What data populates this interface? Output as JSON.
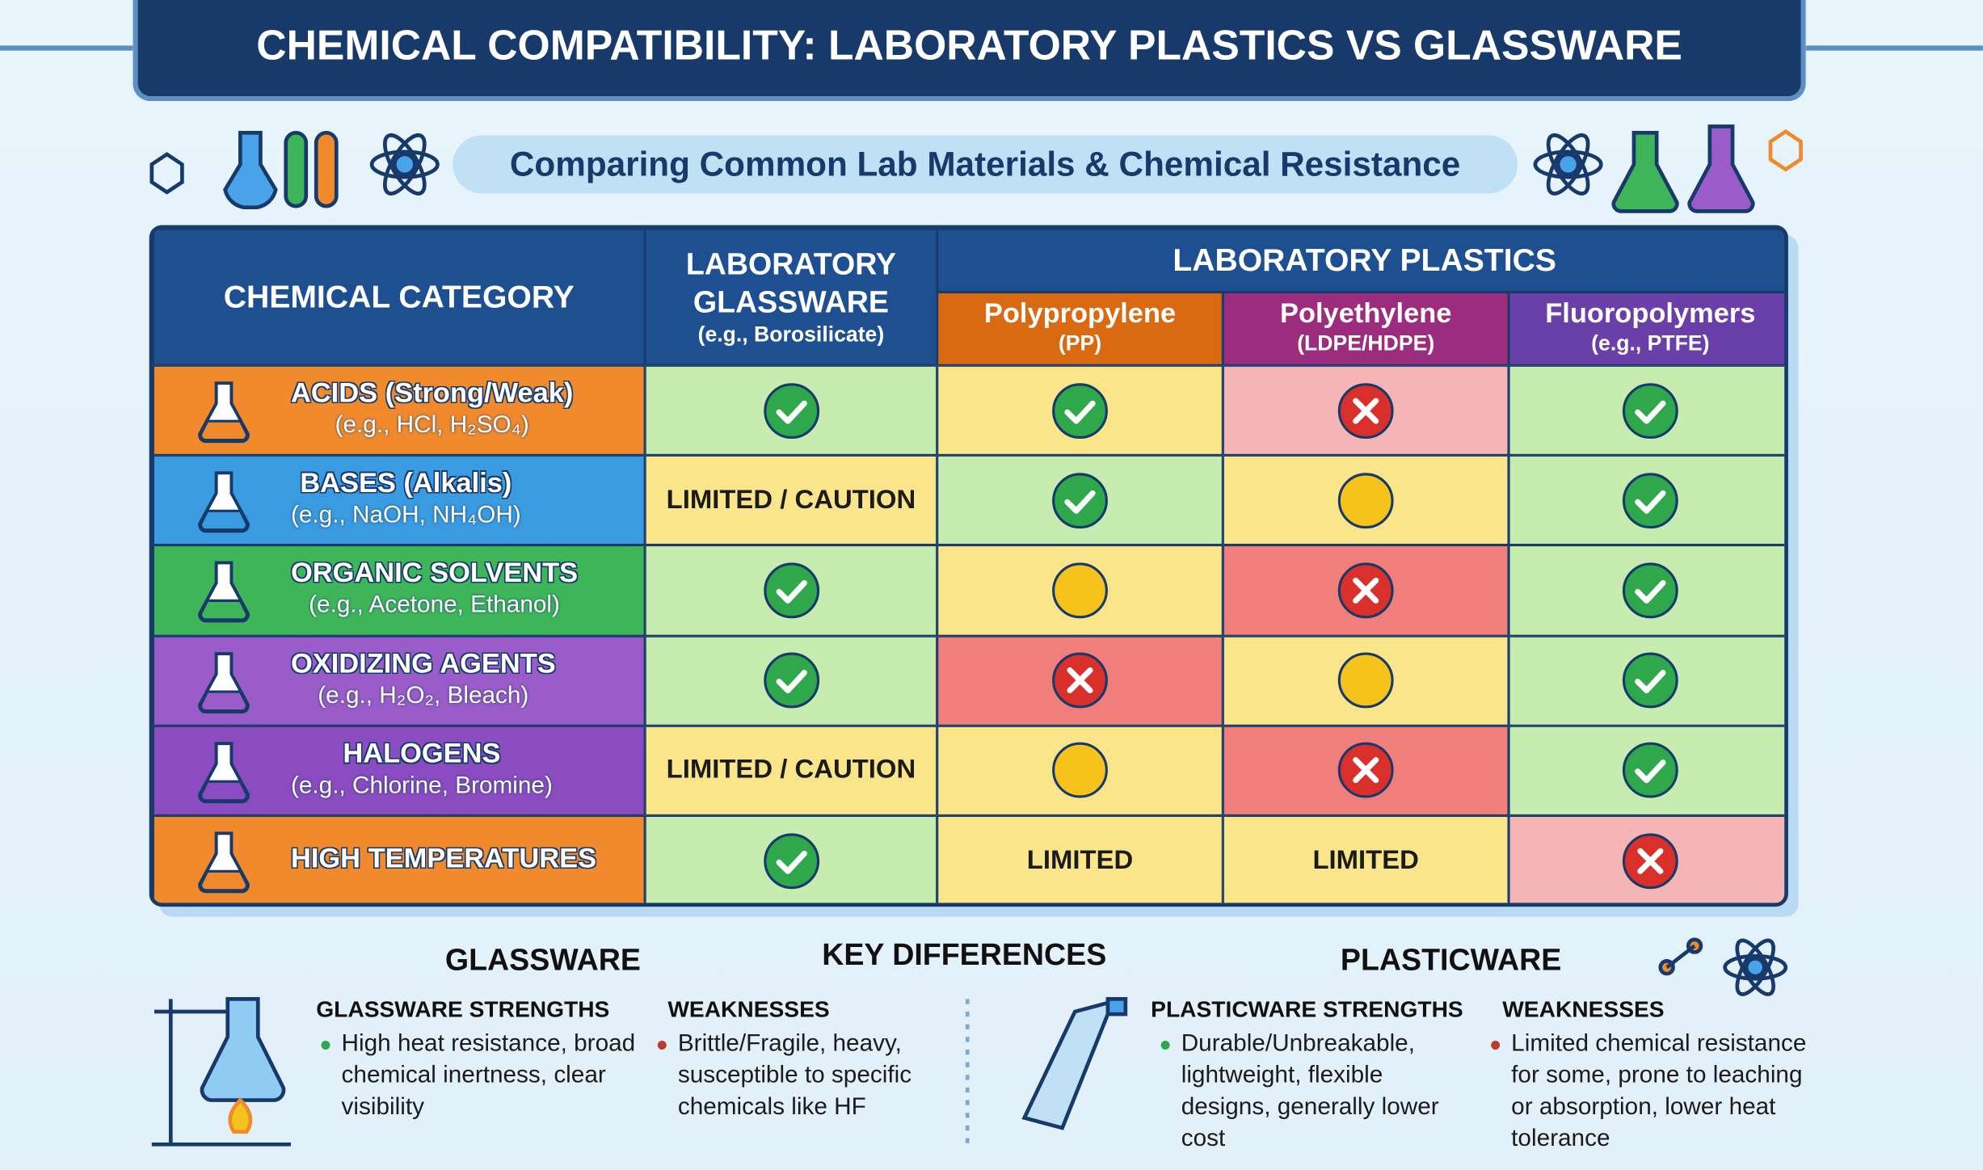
{
  "header": {
    "title": "CHEMICAL COMPATIBILITY: LABORATORY PLASTICS VS GLASSWARE",
    "subtitle": "Comparing Common Lab Materials & Chemical Resistance"
  },
  "table": {
    "category_header": "CHEMICAL CATEGORY",
    "glassware_header": {
      "name": "LABORATORY GLASSWARE",
      "note": "(e.g., Borosilicate)"
    },
    "plastics_header": "LABORATORY PLASTICS",
    "materials": [
      {
        "name": "Polypropylene",
        "note": "(PP)"
      },
      {
        "name": "Polyethylene",
        "note": "(LDPE/HDPE)"
      },
      {
        "name": "Fluoropolymers",
        "note": "(e.g., PTFE)"
      }
    ],
    "rows": [
      {
        "category": "ACIDS (Strong/Weak)",
        "examples": "(e.g., HCl, H₂SO₄)",
        "cells": [
          null,
          null,
          null,
          null
        ]
      },
      {
        "category": "BASES (Alkalis)",
        "examples": "(e.g., NaOH, NH₄OH)",
        "cells": [
          "LIMITED / CAUTION",
          null,
          null,
          null
        ]
      },
      {
        "category": "ORGANIC SOLVENTS",
        "examples": "(e.g., Acetone, Ethanol)",
        "cells": [
          null,
          null,
          null,
          null
        ]
      },
      {
        "category": "OXIDIZING AGENTS",
        "examples": "(e.g., H₂O₂, Bleach)",
        "cells": [
          null,
          null,
          null,
          null
        ]
      },
      {
        "category": "HALOGENS",
        "examples": "(e.g., Chlorine, Bromine)",
        "cells": [
          "LIMITED / CAUTION",
          null,
          null,
          null
        ]
      },
      {
        "category": "HIGH TEMPERATURES",
        "examples": null,
        "cells": [
          null,
          "LIMITED",
          "LIMITED",
          null
        ]
      }
    ]
  },
  "summary": {
    "key_title": "KEY DIFFERENCES",
    "glassware": {
      "title": "GLASSWARE",
      "strengths": {
        "title": "GLASSWARE STRENGTHS",
        "text": "High heat resistance, broad chemical inertness, clear visibility"
      },
      "weaknesses": {
        "title": "WEAKNESSES",
        "text": "Brittle/Fragile, heavy, susceptible to specific chemicals like HF"
      }
    },
    "plasticware": {
      "title": "PLASTICWARE",
      "strengths": {
        "title": "PLASTICWARE STRENGTHS",
        "text": "Durable/Unbreakable, lightweight, flexible designs, generally lower cost"
      },
      "weaknesses": {
        "title": "WEAKNESSES",
        "text": "Limited chemical resistance for some, prone to leaching or absorption, lower heat tolerance"
      }
    }
  }
}
